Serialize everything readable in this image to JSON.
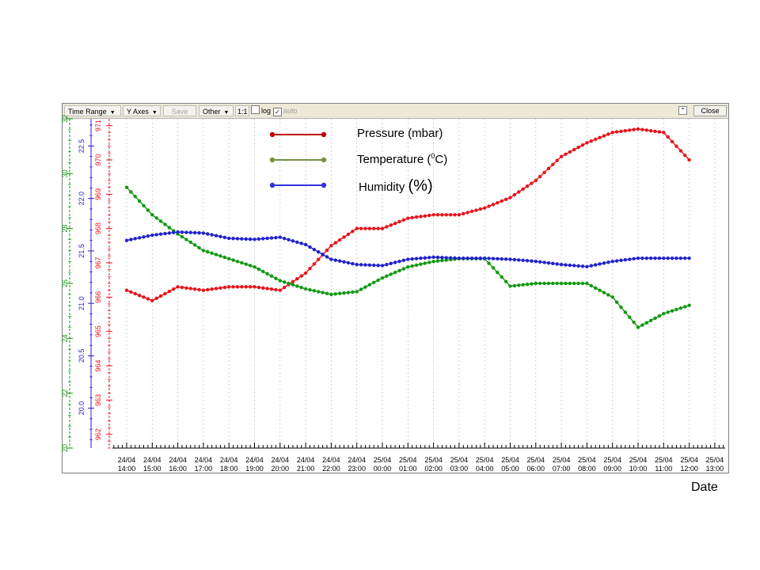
{
  "toolbar": {
    "time_range_label": "Time Range",
    "y_axes_label": "Y Axes",
    "save_label": "Save",
    "other_label": "Other",
    "ratio_label": "1:1",
    "log_label": "log",
    "auto_label": "auto",
    "auto_checked_glyph": "✓",
    "collapse_glyph": "⌃",
    "close_label": "Close",
    "dropdown_icon": "caret-down-icon"
  },
  "chart_data": {
    "type": "line",
    "title": "",
    "xlabel": "Date",
    "x": [
      "24/04 14:00",
      "24/04 15:00",
      "24/04 16:00",
      "24/04 17:00",
      "24/04 18:00",
      "24/04 19:00",
      "24/04 20:00",
      "24/04 21:00",
      "24/04 22:00",
      "24/04 23:00",
      "25/04 00:00",
      "25/04 01:00",
      "25/04 02:00",
      "25/04 03:00",
      "25/04 04:00",
      "25/04 05:00",
      "25/04 06:00",
      "25/04 07:00",
      "25/04 08:00",
      "25/04 09:00",
      "25/04 10:00",
      "25/04 11:00",
      "25/04 12:00"
    ],
    "x_tick_labels": [
      {
        "day": "24/04",
        "time": "14:00"
      },
      {
        "day": "24/04",
        "time": "15:00"
      },
      {
        "day": "24/04",
        "time": "16:00"
      },
      {
        "day": "24/04",
        "time": "17:00"
      },
      {
        "day": "24/04",
        "time": "18:00"
      },
      {
        "day": "24/04",
        "time": "19:00"
      },
      {
        "day": "24/04",
        "time": "20:00"
      },
      {
        "day": "24/04",
        "time": "21:00"
      },
      {
        "day": "24/04",
        "time": "22:00"
      },
      {
        "day": "24/04",
        "time": "23:00"
      },
      {
        "day": "25/04",
        "time": "00:00"
      },
      {
        "day": "25/04",
        "time": "01:00"
      },
      {
        "day": "25/04",
        "time": "02:00"
      },
      {
        "day": "25/04",
        "time": "03:00"
      },
      {
        "day": "25/04",
        "time": "04:00"
      },
      {
        "day": "25/04",
        "time": "05:00"
      },
      {
        "day": "25/04",
        "time": "06:00"
      },
      {
        "day": "25/04",
        "time": "07:00"
      },
      {
        "day": "25/04",
        "time": "08:00"
      },
      {
        "day": "25/04",
        "time": "09:00"
      },
      {
        "day": "25/04",
        "time": "10:00"
      },
      {
        "day": "25/04",
        "time": "11:00"
      },
      {
        "day": "25/04",
        "time": "12:00"
      },
      {
        "day": "25/04",
        "time": "13:00"
      }
    ],
    "grid": true,
    "legend_position": "top-center",
    "y_axes": [
      {
        "name": "Pressure",
        "color": "#e8141c",
        "ylim": [
          961.6,
          971.2
        ],
        "ticks": [
          "962",
          "963",
          "964",
          "965",
          "966",
          "967",
          "968",
          "969",
          "970",
          "971"
        ]
      },
      {
        "name": "Humidity",
        "color": "#2222cc",
        "ylim": [
          19.62,
          22.76
        ],
        "ticks": [
          "20.0",
          "20.5",
          "21.0",
          "21.5",
          "22.0",
          "22.5"
        ]
      },
      {
        "name": "Temperature",
        "color": "#119911",
        "ylim": [
          20.0,
          32.0
        ],
        "ticks": [
          "20",
          "22",
          "24",
          "26",
          "28",
          "30",
          "32"
        ]
      }
    ],
    "series": [
      {
        "name": "Pressure (mbar)",
        "color": "#e8141c",
        "values": [
          966.2,
          965.9,
          966.3,
          966.2,
          966.3,
          966.3,
          966.2,
          966.7,
          967.5,
          968.0,
          968.0,
          968.3,
          968.4,
          968.4,
          968.6,
          968.9,
          969.4,
          970.1,
          970.5,
          970.8,
          970.9,
          970.8,
          970.0
        ]
      },
      {
        "name": "Temperature (0C)",
        "color": "#119911",
        "values": [
          29.5,
          28.5,
          27.8,
          27.2,
          26.9,
          26.6,
          26.1,
          25.8,
          25.6,
          25.7,
          26.2,
          26.6,
          26.8,
          26.9,
          26.9,
          25.9,
          26.0,
          26.0,
          26.0,
          25.5,
          24.4,
          24.9,
          25.2
        ]
      },
      {
        "name": "Humidity (%)",
        "color": "#2222cc",
        "values": [
          21.6,
          21.65,
          21.68,
          21.67,
          21.62,
          21.61,
          21.63,
          21.56,
          21.42,
          21.37,
          21.36,
          21.42,
          21.44,
          21.43,
          21.43,
          21.42,
          21.4,
          21.37,
          21.35,
          21.4,
          21.43,
          21.43,
          21.43
        ]
      }
    ],
    "legend": [
      {
        "label": "Pressure (mbar)",
        "prefix": "Pressure (mbar)",
        "sup": "",
        "suffix": "",
        "color": "#c00000"
      },
      {
        "label": "Temperature (0C)",
        "prefix": "Temperature (",
        "sup": "0",
        "suffix": "C)",
        "color": "#77933c"
      },
      {
        "label": "Humidity (%)",
        "prefix": "Humidity ",
        "sup": "",
        "suffix": "(%)",
        "color": "#3333dd"
      }
    ]
  }
}
